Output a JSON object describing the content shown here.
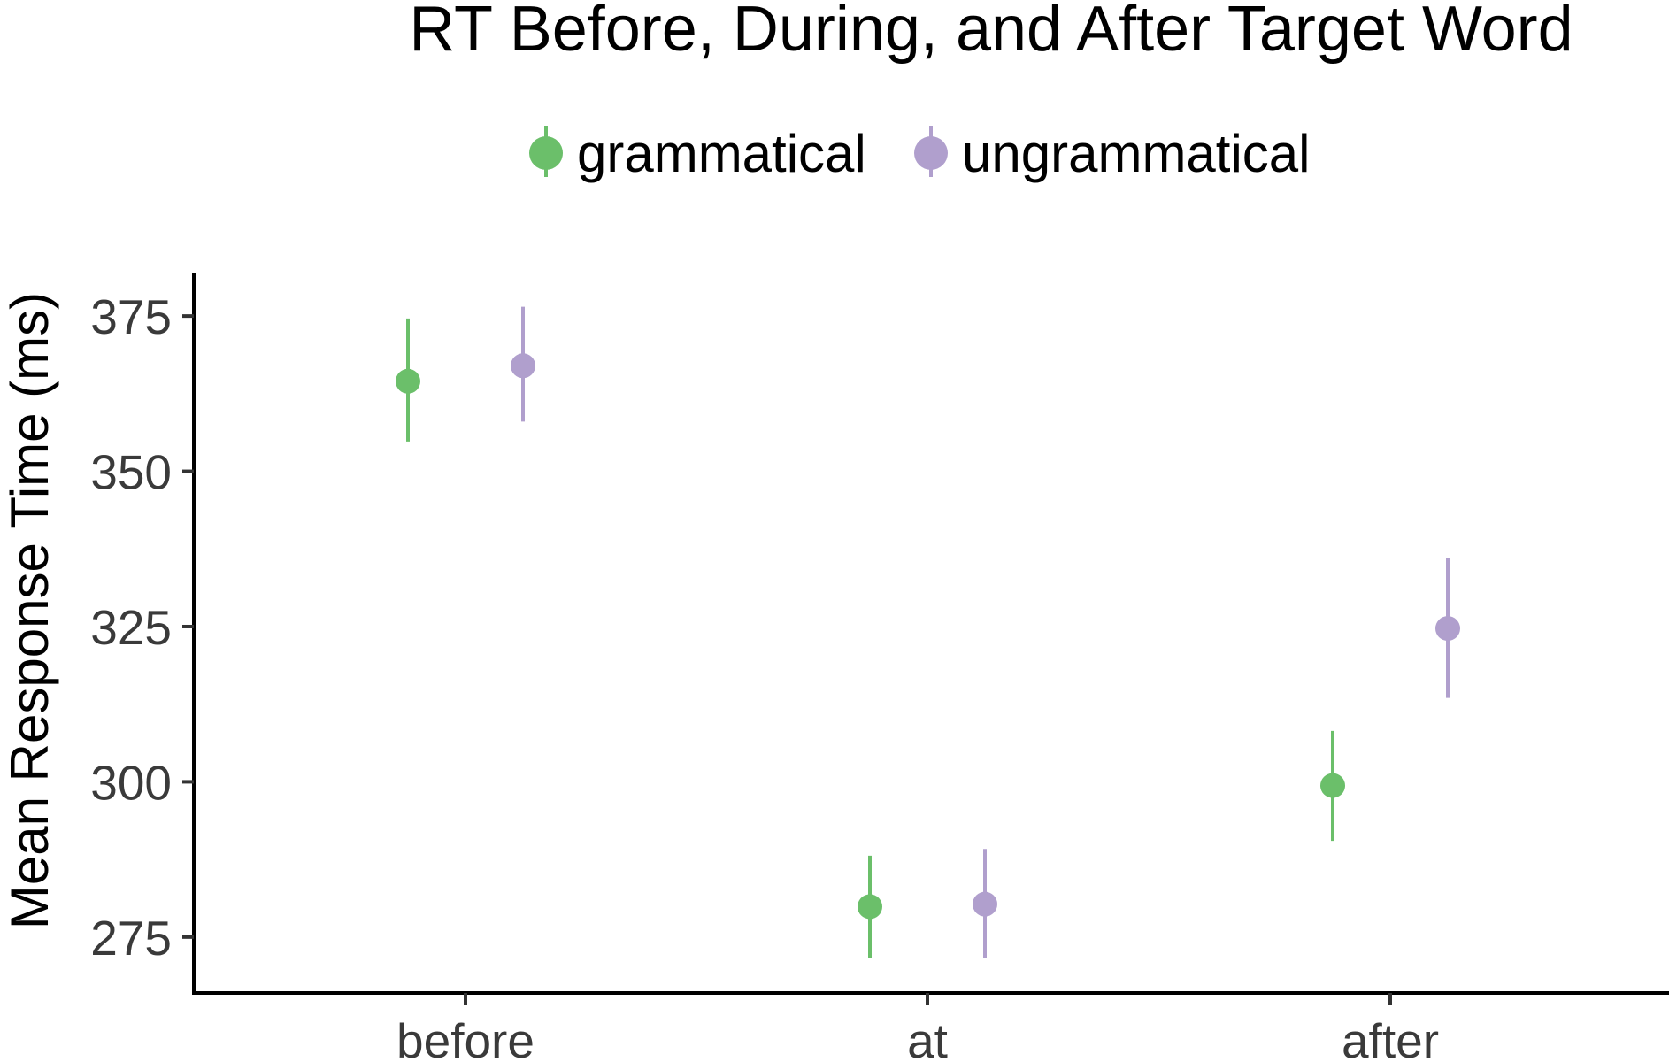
{
  "chart_data": {
    "type": "scatter",
    "title": "RT Before, During, and After Target Word",
    "xlabel": "",
    "ylabel": "Mean Response Time (ms)",
    "categories": [
      "before",
      "at",
      "after"
    ],
    "ylim": [
      266,
      382
    ],
    "yticks": [
      "275",
      "300",
      "325",
      "350",
      "375"
    ],
    "grid": false,
    "legend_position": "top",
    "series": [
      {
        "name": "grammatical",
        "color": "#6bbf6a",
        "values": [
          364.5,
          279.9,
          299.4
        ],
        "error_low": [
          354.8,
          271.6,
          290.5
        ],
        "error_high": [
          374.6,
          288.1,
          308.2
        ]
      },
      {
        "name": "ungrammatical",
        "color": "#b09fcd",
        "values": [
          367.0,
          280.3,
          324.7
        ],
        "error_low": [
          358.0,
          271.6,
          313.5
        ],
        "error_high": [
          376.5,
          289.2,
          336.1
        ]
      }
    ]
  }
}
